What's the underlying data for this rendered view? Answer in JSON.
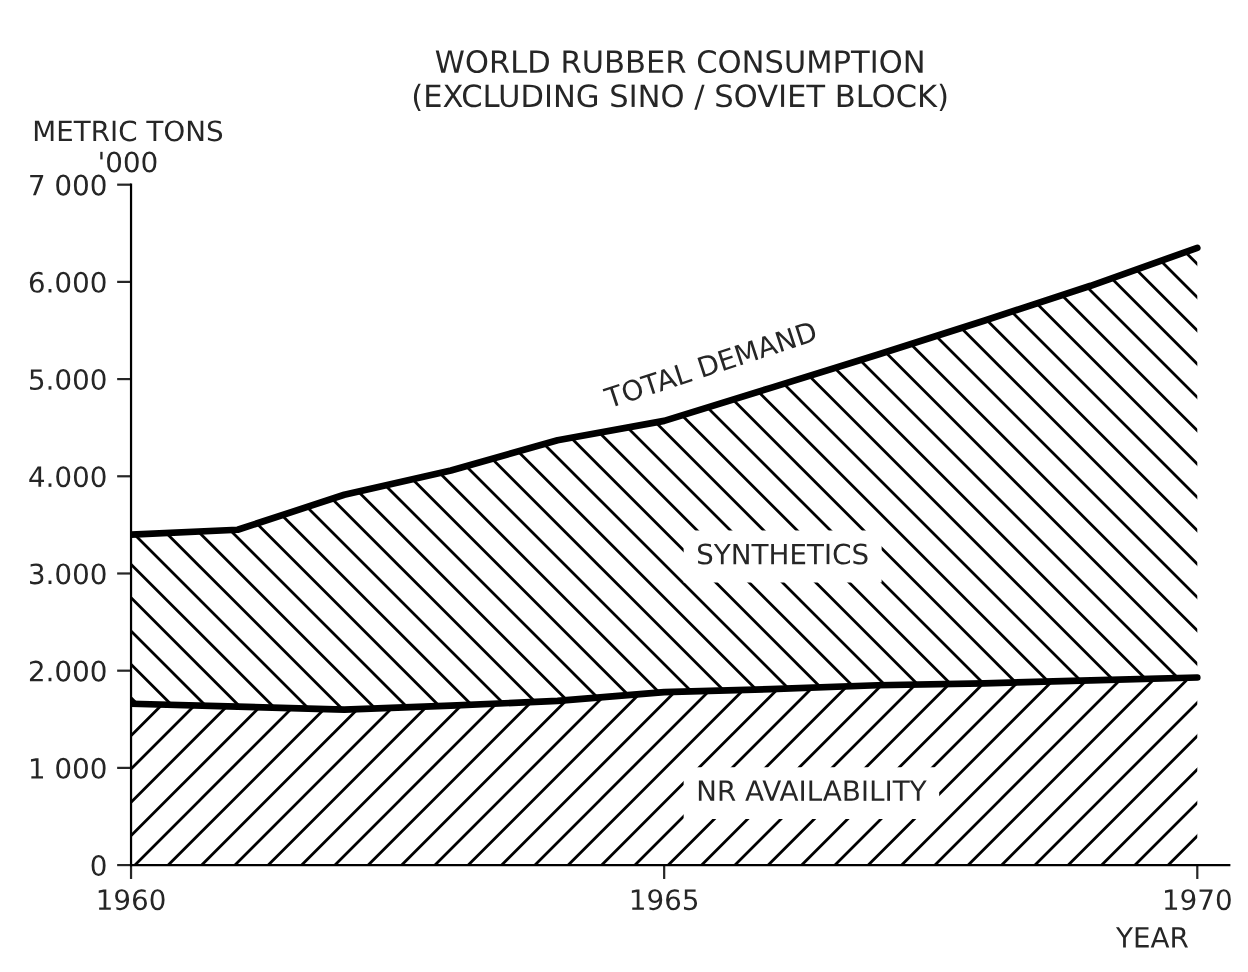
{
  "chart_data": {
    "type": "area",
    "stacked": true,
    "title": "WORLD RUBBER CONSUMPTION\n(EXCLUDING SINO / SOVIET BLOCK)",
    "xlabel": "YEAR",
    "ylabel": "METRIC TONS\n'000",
    "x": [
      1960,
      1961,
      1962,
      1963,
      1964,
      1965,
      1966,
      1967,
      1968,
      1969,
      1970
    ],
    "series": [
      {
        "name": "NR AVAILABILITY",
        "color": "#000000",
        "values": [
          1660,
          1630,
          1600,
          1640,
          1690,
          1780,
          1810,
          1850,
          1870,
          1900,
          1930
        ]
      },
      {
        "name": "SYNTHETICS",
        "color": "#000000",
        "values": [
          1740,
          1820,
          2210,
          2420,
          2680,
          2790,
          3100,
          3400,
          3730,
          4060,
          4420
        ]
      }
    ],
    "annotations": [
      "TOTAL DEMAND"
    ],
    "xlim": [
      1960,
      1970.3
    ],
    "ylim": [
      0,
      7000
    ],
    "xticks": [
      1960,
      1965,
      1970
    ],
    "yticks": [
      {
        "value": 7000,
        "label": "7 000"
      },
      {
        "value": 6000,
        "label": "6.000"
      },
      {
        "value": 5000,
        "label": "5.000"
      },
      {
        "value": 4000,
        "label": "4.000"
      },
      {
        "value": 3000,
        "label": "3.000"
      },
      {
        "value": 2000,
        "label": "2.000"
      },
      {
        "value": 1000,
        "label": "1 000"
      },
      0
    ],
    "grid": false,
    "legend": false
  }
}
